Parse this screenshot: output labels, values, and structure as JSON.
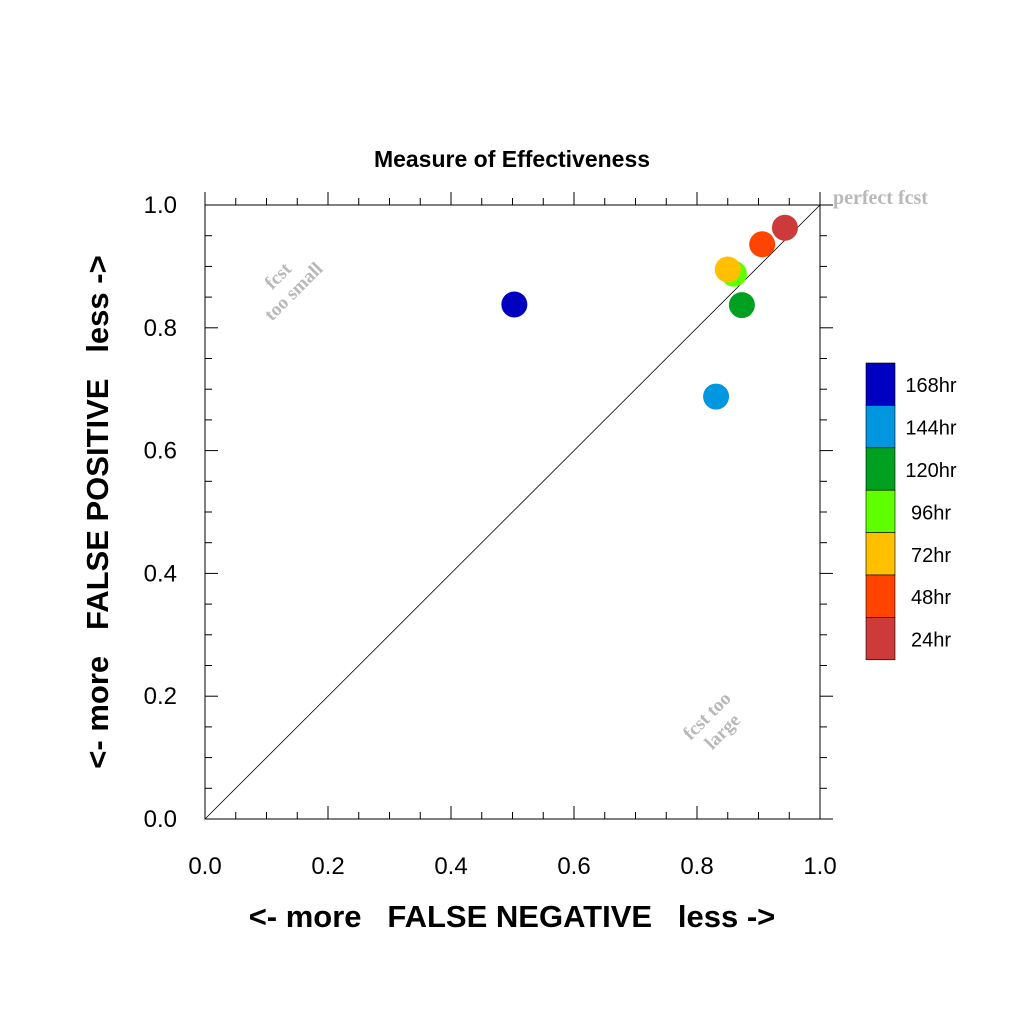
{
  "chart_data": {
    "type": "scatter",
    "title": "Measure of Effectiveness",
    "xlabel": "<- more   FALSE NEGATIVE   less ->",
    "ylabel": "<- more   FALSE POSITIVE   less ->",
    "xlim": [
      0.0,
      1.0
    ],
    "ylim": [
      0.0,
      1.0
    ],
    "x_ticks": [
      "0.0",
      "0.2",
      "0.4",
      "0.6",
      "0.8",
      "1.0"
    ],
    "y_ticks": [
      "0.0",
      "0.2",
      "0.4",
      "0.6",
      "0.8",
      "1.0"
    ],
    "grid": false,
    "diagonal_reference_line": true,
    "annotations": {
      "perfect": "perfect fcst",
      "too_small_1": "fcst",
      "too_small_2": "too small",
      "too_large_1": "fcst too",
      "too_large_2": "large"
    },
    "annotation_color": "#b8b8b8",
    "legend_position": "right",
    "series": [
      {
        "name": "168hr",
        "color": "#0000c0",
        "x": 0.503,
        "y": 0.838
      },
      {
        "name": "144hr",
        "color": "#0096e0",
        "x": 0.831,
        "y": 0.688
      },
      {
        "name": "120hr",
        "color": "#00a020",
        "x": 0.873,
        "y": 0.837
      },
      {
        "name": "96hr",
        "color": "#60ff00",
        "x": 0.86,
        "y": 0.888
      },
      {
        "name": "72hr",
        "color": "#ffc000",
        "x": 0.85,
        "y": 0.895
      },
      {
        "name": "48hr",
        "color": "#ff4400",
        "x": 0.906,
        "y": 0.936
      },
      {
        "name": "24hr",
        "color": "#cc3a3a",
        "x": 0.943,
        "y": 0.963
      }
    ]
  }
}
